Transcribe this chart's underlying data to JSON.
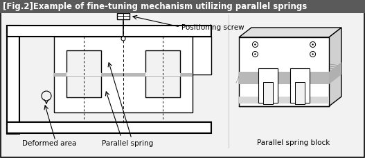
{
  "title": "[Fig.2]Example of fine-tuning mechanism utilizing parallel springs",
  "title_bg": "#5a5a5a",
  "title_color": "#ffffff",
  "title_fontsize": 8.5,
  "bg_color": "#f2f2f2",
  "label_positioning_screw": "Positioning screw",
  "label_deformed_area": "Deformed area",
  "label_parallel_spring": "Parallel spring",
  "label_parallel_spring_block": "Parallel spring block",
  "fig_width": 5.27,
  "fig_height": 2.3,
  "dpi": 100
}
